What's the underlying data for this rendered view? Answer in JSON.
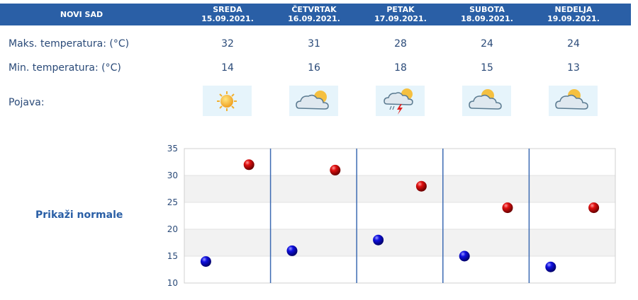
{
  "header": {
    "city": "NOVI SAD",
    "days": [
      {
        "name": "SREDA",
        "date": "15.09.2021."
      },
      {
        "name": "ČETVRTAK",
        "date": "16.09.2021."
      },
      {
        "name": "PETAK",
        "date": "17.09.2021."
      },
      {
        "name": "SUBOTA",
        "date": "18.09.2021."
      },
      {
        "name": "NEDELJA",
        "date": "19.09.2021."
      }
    ]
  },
  "rows": {
    "max_label": "Maks. temperatura: (°C)",
    "min_label": "Min. temperatura: (°C)",
    "phenomenon_label": "Pojava:",
    "max_values": [
      "32",
      "31",
      "28",
      "24",
      "24"
    ],
    "min_values": [
      "14",
      "16",
      "18",
      "15",
      "13"
    ],
    "icons": [
      "sunny-icon",
      "partly-cloudy-icon",
      "thunderstorm-icon",
      "partly-cloudy-icon",
      "partly-cloudy-icon"
    ]
  },
  "normals_link": "Prikaži normale",
  "colors": {
    "header_bg": "#2a5fa6",
    "max_marker": "#cc0000",
    "min_marker": "#0000cc",
    "day_divider": "#3d6bb3",
    "band": "#f2f2f2"
  },
  "chart_data": {
    "type": "scatter",
    "categories": [
      "SREDA",
      "ČETVRTAK",
      "PETAK",
      "SUBOTA",
      "NEDELJA"
    ],
    "series": [
      {
        "role": "max",
        "values": [
          32,
          31,
          28,
          24,
          24
        ]
      },
      {
        "role": "min",
        "values": [
          14,
          16,
          18,
          15,
          13
        ]
      }
    ],
    "ylim": [
      10,
      35
    ],
    "yticks": [
      "10",
      "15",
      "20",
      "25",
      "30",
      "35"
    ],
    "title": "",
    "xlabel": "",
    "ylabel": "",
    "grid": "alternating horizontal bands"
  }
}
